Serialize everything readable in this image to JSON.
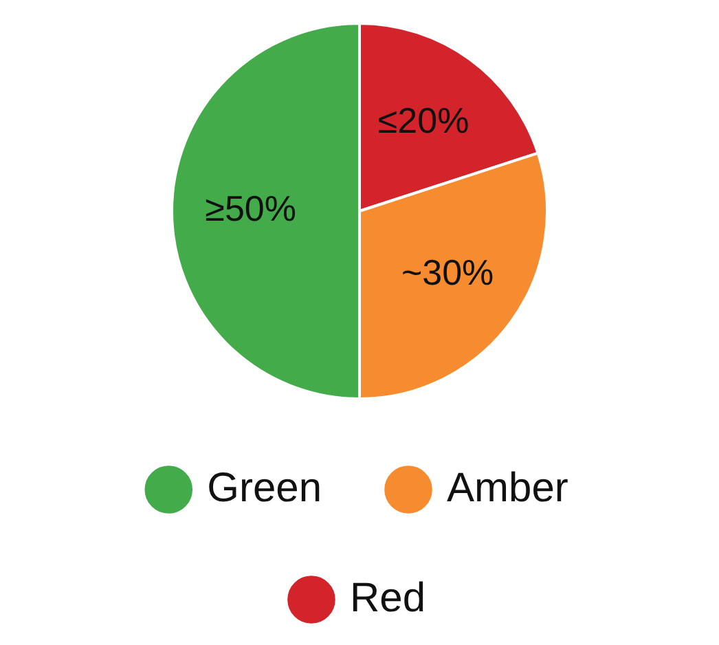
{
  "chart_data": {
    "type": "pie",
    "categories": [
      "Red",
      "Amber",
      "Green"
    ],
    "values": [
      20,
      30,
      50
    ],
    "colors": [
      "#d4242b",
      "#f68b2f",
      "#43ab49"
    ],
    "value_labels": [
      "≤20%",
      "~30%",
      "≥50%"
    ],
    "legend": "bottom"
  }
}
